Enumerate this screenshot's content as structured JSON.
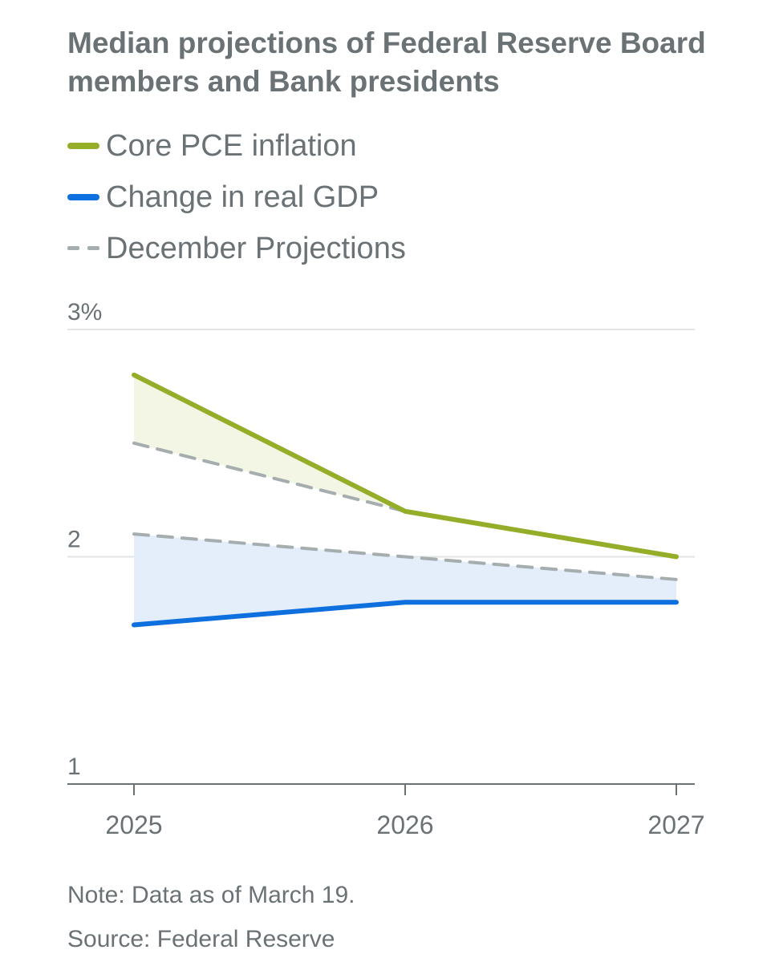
{
  "title": "Median projections of Federal Reserve Board members and Bank presidents",
  "legend": [
    {
      "label": "Core PCE inflation",
      "color": "#94ae2a",
      "style": "solid"
    },
    {
      "label": "Change in real GDP",
      "color": "#0e6fde",
      "style": "solid"
    },
    {
      "label": "December Projections",
      "color": "#a5adaf",
      "style": "dashed"
    }
  ],
  "chart_data": {
    "type": "line",
    "title": "Median projections of Federal Reserve Board members and Bank presidents",
    "x": [
      "2025",
      "2026",
      "2027"
    ],
    "ylim": [
      1,
      3
    ],
    "yticks": [
      1,
      2,
      3
    ],
    "ytick_labels": [
      "1",
      "2",
      "3%"
    ],
    "grid": true,
    "series": [
      {
        "name": "Core PCE inflation",
        "values": [
          2.8,
          2.2,
          2.0
        ],
        "color": "#94ae2a",
        "fill": "#f3f6e4"
      },
      {
        "name": "Change in real GDP",
        "values": [
          1.7,
          1.8,
          1.8
        ],
        "color": "#0e6fde",
        "fill": "#e3eefa"
      },
      {
        "name": "December Projections (Core PCE inflation)",
        "values": [
          2.5,
          2.2,
          2.0
        ],
        "color": "#a5adaf",
        "dashed": true
      },
      {
        "name": "December Projections (Change in real GDP)",
        "values": [
          2.1,
          2.0,
          1.9
        ],
        "color": "#a5adaf",
        "dashed": true
      }
    ]
  },
  "notes": {
    "note": "Note: Data as of March 19.",
    "source": "Source: Federal Reserve"
  }
}
